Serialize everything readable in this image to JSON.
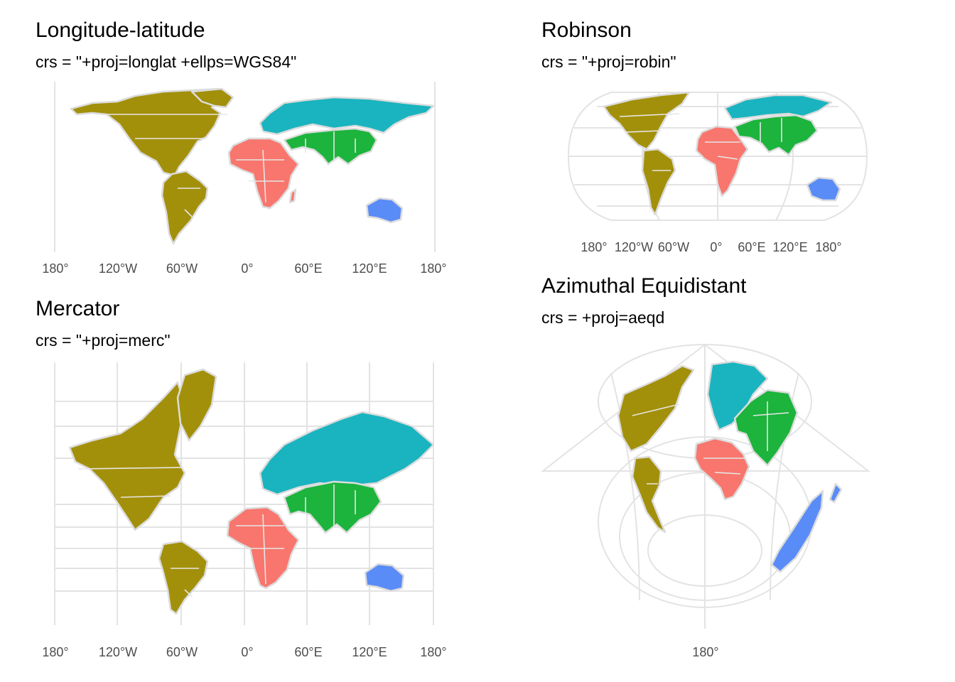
{
  "colors": {
    "americas": "#a3900a",
    "africa": "#f8766d",
    "asia": "#1cb43c",
    "europe_russia": "#19b4bf",
    "oceania": "#5a8cf7",
    "land_outline": "#dcdcdc",
    "grid": "#e3e3e3"
  },
  "panels": [
    {
      "title": "Longitude-latitude",
      "subtitle": "crs = \"+proj=longlat +ellps=WGS84\"",
      "ticks": [
        "180°",
        "120°W",
        "60°W",
        "0°",
        "60°E",
        "120°E",
        "180°"
      ]
    },
    {
      "title": "Robinson",
      "subtitle": "crs = \"+proj=robin\"",
      "ticks": [
        "180°",
        "120°W",
        "60°W",
        "0°",
        "60°E",
        "120°E",
        "180°"
      ]
    },
    {
      "title": "Mercator",
      "subtitle": "crs = \"+proj=merc\"",
      "ticks": [
        "180°",
        "120°W",
        "60°W",
        "0°",
        "60°E",
        "120°E",
        "180°"
      ]
    },
    {
      "title": "Azimuthal Equidistant",
      "subtitle": "crs = +proj=aeqd",
      "ticks": [
        "180°"
      ]
    }
  ]
}
